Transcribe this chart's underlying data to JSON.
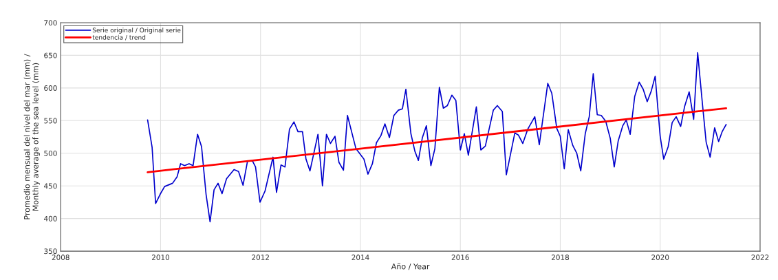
{
  "chart_data": {
    "type": "line",
    "xlabel": "Año / Year",
    "ylabel": "Promedio mensual del nivel del mar (mm) /\nMonthly average of the sea level (mm)",
    "xlim": [
      2008,
      2022
    ],
    "xticks": [
      2008,
      2010,
      2012,
      2014,
      2016,
      2018,
      2020,
      2022
    ],
    "ylim": [
      350,
      700
    ],
    "yticks": [
      350,
      400,
      450,
      500,
      550,
      600,
      650,
      700
    ],
    "grid": true,
    "legend": "top left",
    "marker": "none",
    "line_style": "solid",
    "series": [
      {
        "name": "Serie original / Original serie",
        "color": "#0000cc",
        "x": [
          2009.74,
          2009.83,
          2009.9,
          2009.99,
          2010.08,
          2010.24,
          2010.33,
          2010.4,
          2010.48,
          2010.57,
          2010.65,
          2010.74,
          2010.82,
          2010.91,
          2010.99,
          2011.07,
          2011.15,
          2011.23,
          2011.32,
          2011.47,
          2011.56,
          2011.65,
          2011.74,
          2011.84,
          2011.9,
          2011.99,
          2012.09,
          2012.25,
          2012.32,
          2012.41,
          2012.49,
          2012.58,
          2012.67,
          2012.75,
          2012.84,
          2012.91,
          2012.99,
          2013.15,
          2013.24,
          2013.32,
          2013.4,
          2013.49,
          2013.57,
          2013.66,
          2013.74,
          2013.91,
          2014.07,
          2014.15,
          2014.24,
          2014.32,
          2014.41,
          2014.49,
          2014.58,
          2014.67,
          2014.76,
          2014.84,
          2014.91,
          2015.01,
          2015.09,
          2015.16,
          2015.24,
          2015.32,
          2015.41,
          2015.49,
          2015.58,
          2015.66,
          2015.74,
          2015.83,
          2015.91,
          2016.0,
          2016.08,
          2016.16,
          2016.32,
          2016.41,
          2016.5,
          2016.66,
          2016.74,
          2016.84,
          2016.92,
          2017.09,
          2017.16,
          2017.25,
          2017.35,
          2017.49,
          2017.58,
          2017.75,
          2017.83,
          2017.93,
          2018.0,
          2018.08,
          2018.16,
          2018.25,
          2018.33,
          2018.41,
          2018.5,
          2018.58,
          2018.66,
          2018.74,
          2018.82,
          2018.91,
          2019.0,
          2019.08,
          2019.16,
          2019.25,
          2019.32,
          2019.4,
          2019.49,
          2019.58,
          2019.66,
          2019.74,
          2019.82,
          2019.9,
          2020.0,
          2020.07,
          2020.16,
          2020.24,
          2020.32,
          2020.41,
          2020.49,
          2020.58,
          2020.67,
          2020.75,
          2020.85,
          2020.92,
          2021.0,
          2021.09,
          2021.17,
          2021.24,
          2021.32
        ],
        "values": [
          551,
          509,
          423,
          437,
          449,
          454,
          464,
          484,
          481,
          484,
          481,
          529,
          510,
          437,
          395,
          444,
          454,
          438,
          461,
          475,
          472,
          451,
          488,
          488,
          479,
          425,
          442,
          494,
          440,
          482,
          479,
          537,
          548,
          533,
          533,
          491,
          473,
          529,
          450,
          529,
          515,
          526,
          486,
          474,
          558,
          507,
          491,
          468,
          484,
          516,
          527,
          545,
          524,
          558,
          566,
          568,
          598,
          530,
          503,
          489,
          524,
          542,
          481,
          507,
          601,
          569,
          573,
          589,
          581,
          505,
          530,
          497,
          571,
          505,
          511,
          566,
          573,
          564,
          467,
          531,
          528,
          515,
          537,
          556,
          513,
          607,
          592,
          538,
          526,
          476,
          536,
          512,
          500,
          473,
          530,
          556,
          622,
          559,
          558,
          549,
          523,
          479,
          519,
          542,
          551,
          529,
          587,
          609,
          598,
          579,
          595,
          618,
          526,
          491,
          510,
          547,
          556,
          541,
          572,
          594,
          552,
          654,
          572,
          517,
          494,
          539,
          518,
          533,
          544
        ]
      },
      {
        "name": "tendencia / trend",
        "color": "#ff0000",
        "x": [
          2009.74,
          2021.32
        ],
        "values": [
          471,
          569
        ]
      }
    ]
  }
}
